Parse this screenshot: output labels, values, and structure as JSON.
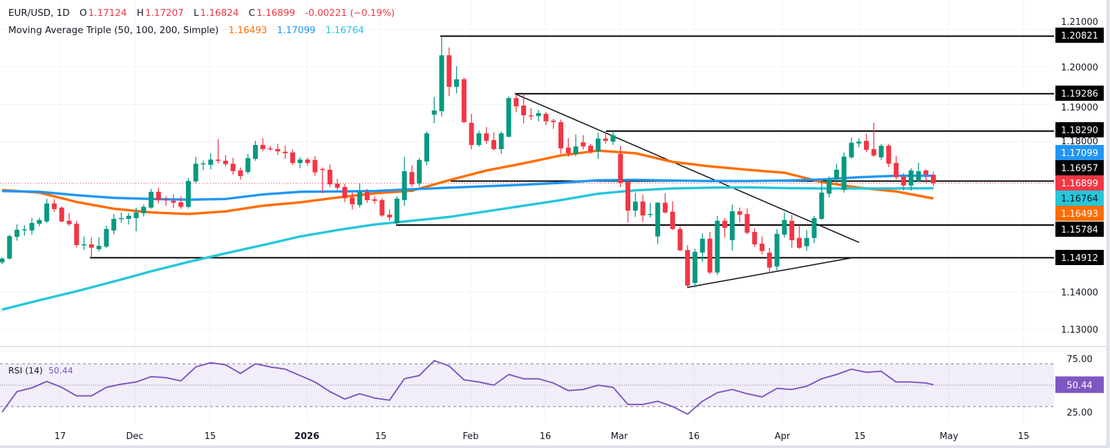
{
  "header": {
    "symbol": "EUR/USD, 1D",
    "open_label": "O",
    "open": "1.17124",
    "high_label": "H",
    "high": "1.17207",
    "low_label": "L",
    "low": "1.16824",
    "close_label": "C",
    "close": "1.16899",
    "change": "-0.00221 (−0.19%)",
    "indicator": "Moving Average Triple (50, 100, 200, Simple)",
    "ma50": "1.16493",
    "ma100": "1.17099",
    "ma200": "1.16764"
  },
  "rsi_legend": {
    "name": "RSI (14)",
    "value": "50.44"
  },
  "colors": {
    "up": "#089981",
    "down": "#f23645",
    "ma50": "#ff6d00",
    "ma100": "#2196f3",
    "ma200": "#26c6da",
    "rsi": "#7e57c2",
    "level_line": "#000000",
    "last_price": "#f23645"
  },
  "chart_data": [
    {
      "type": "candlestick",
      "title": "EUR/USD, 1D",
      "x_ticks": [
        "17",
        "Dec",
        "15",
        "2026",
        "15",
        "Feb",
        "16",
        "Mar",
        "16",
        "Apr",
        "15",
        "May",
        "15"
      ],
      "y_ticks": [
        "1.21000",
        "1.20000",
        "1.19000",
        "1.18000",
        "1.14000",
        "1.13000"
      ],
      "ylim": [
        1.1282,
        1.2102
      ],
      "grid": true,
      "ohlc": [
        [
          1.1479,
          1.1493,
          1.1474,
          1.1489
        ],
        [
          1.1489,
          1.1553,
          1.1486,
          1.1549
        ],
        [
          1.1547,
          1.158,
          1.1537,
          1.1566
        ],
        [
          1.1565,
          1.1578,
          1.155,
          1.1567
        ],
        [
          1.1564,
          1.1597,
          1.1553,
          1.1584
        ],
        [
          1.1582,
          1.1598,
          1.1575,
          1.1592
        ],
        [
          1.1588,
          1.1648,
          1.1584,
          1.1636
        ],
        [
          1.1636,
          1.1648,
          1.1614,
          1.1621
        ],
        [
          1.1625,
          1.1628,
          1.1586,
          1.1588
        ],
        [
          1.159,
          1.161,
          1.1576,
          1.1581
        ],
        [
          1.1582,
          1.159,
          1.1519,
          1.1525
        ],
        [
          1.1526,
          1.1548,
          1.1512,
          1.1527
        ],
        [
          1.1527,
          1.1545,
          1.1491,
          1.1518
        ],
        [
          1.1514,
          1.1546,
          1.1508,
          1.1523
        ],
        [
          1.1521,
          1.1577,
          1.1517,
          1.1568
        ],
        [
          1.1564,
          1.1608,
          1.1554,
          1.1595
        ],
        [
          1.1596,
          1.1612,
          1.1585,
          1.1597
        ],
        [
          1.1595,
          1.161,
          1.158,
          1.1603
        ],
        [
          1.1597,
          1.1625,
          1.1562,
          1.1612
        ],
        [
          1.161,
          1.1633,
          1.1601,
          1.1627
        ],
        [
          1.1625,
          1.1675,
          1.1622,
          1.1667
        ],
        [
          1.1667,
          1.1678,
          1.1636,
          1.1645
        ],
        [
          1.1647,
          1.1655,
          1.163,
          1.1646
        ],
        [
          1.1643,
          1.166,
          1.1625,
          1.1638
        ],
        [
          1.1639,
          1.1655,
          1.1622,
          1.1627
        ],
        [
          1.1627,
          1.1704,
          1.1622,
          1.1696
        ],
        [
          1.1695,
          1.176,
          1.169,
          1.1742
        ],
        [
          1.1742,
          1.175,
          1.1725,
          1.1743
        ],
        [
          1.1739,
          1.177,
          1.1727,
          1.1753
        ],
        [
          1.1753,
          1.1807,
          1.1743,
          1.175
        ],
        [
          1.175,
          1.1765,
          1.1735,
          1.1741
        ],
        [
          1.1742,
          1.1758,
          1.1713,
          1.1722
        ],
        [
          1.1724,
          1.1732,
          1.17,
          1.1709
        ],
        [
          1.172,
          1.1768,
          1.1714,
          1.1757
        ],
        [
          1.1755,
          1.1803,
          1.175,
          1.1792
        ],
        [
          1.1792,
          1.181,
          1.1775,
          1.1781
        ],
        [
          1.1783,
          1.179,
          1.1777,
          1.1782
        ],
        [
          1.1781,
          1.1795,
          1.1765,
          1.1775
        ],
        [
          1.1774,
          1.179,
          1.1755,
          1.177
        ],
        [
          1.1772,
          1.178,
          1.1738,
          1.1744
        ],
        [
          1.1744,
          1.176,
          1.173,
          1.1753
        ],
        [
          1.1753,
          1.1758,
          1.1737,
          1.1744
        ],
        [
          1.1752,
          1.1762,
          1.171,
          1.1719
        ],
        [
          1.1728,
          1.1732,
          1.1663,
          1.1727
        ],
        [
          1.1726,
          1.174,
          1.168,
          1.1687
        ],
        [
          1.1689,
          1.1702,
          1.1672,
          1.1678
        ],
        [
          1.168,
          1.1688,
          1.164,
          1.165
        ],
        [
          1.1652,
          1.1665,
          1.162,
          1.1634
        ],
        [
          1.1632,
          1.169,
          1.1625,
          1.1667
        ],
        [
          1.1667,
          1.1675,
          1.1638,
          1.1645
        ],
        [
          1.1647,
          1.1655,
          1.1635,
          1.1643
        ],
        [
          1.1645,
          1.165,
          1.16,
          1.1604
        ],
        [
          1.1606,
          1.162,
          1.159,
          1.1599
        ],
        [
          1.1583,
          1.1655,
          1.15784,
          1.1649
        ],
        [
          1.1645,
          1.176,
          1.163,
          1.1722
        ],
        [
          1.172,
          1.1738,
          1.168,
          1.1687
        ],
        [
          1.1689,
          1.1757,
          1.1682,
          1.1752
        ],
        [
          1.1748,
          1.1828,
          1.1738,
          1.1823
        ],
        [
          1.1873,
          1.192,
          1.185,
          1.1884
        ],
        [
          1.1882,
          1.20821,
          1.1868,
          1.2031
        ],
        [
          1.2031,
          1.2052,
          1.1922,
          1.1947
        ],
        [
          1.1947,
          1.2002,
          1.193,
          1.1967
        ],
        [
          1.1967,
          1.1972,
          1.185,
          1.1853
        ],
        [
          1.1851,
          1.1875,
          1.178,
          1.1792
        ],
        [
          1.1792,
          1.183,
          1.1787,
          1.1823
        ],
        [
          1.1823,
          1.184,
          1.1795,
          1.1803
        ],
        [
          1.1805,
          1.1826,
          1.1777,
          1.1781
        ],
        [
          1.1781,
          1.1828,
          1.1768,
          1.1823
        ],
        [
          1.1814,
          1.1922,
          1.1812,
          1.1917
        ],
        [
          1.1917,
          1.19286,
          1.188,
          1.1895
        ],
        [
          1.1897,
          1.19286,
          1.185,
          1.1871
        ],
        [
          1.1871,
          1.189,
          1.1858,
          1.187
        ],
        [
          1.1869,
          1.1885,
          1.1855,
          1.1877
        ],
        [
          1.1875,
          1.188,
          1.1845,
          1.1855
        ],
        [
          1.1857,
          1.1862,
          1.1835,
          1.1853
        ],
        [
          1.1853,
          1.186,
          1.1768,
          1.1783
        ],
        [
          1.1785,
          1.181,
          1.176,
          1.177
        ],
        [
          1.1768,
          1.182,
          1.1762,
          1.1788
        ],
        [
          1.1799,
          1.1818,
          1.178,
          1.1788
        ],
        [
          1.179,
          1.1795,
          1.1768,
          1.1775
        ],
        [
          1.1775,
          1.1825,
          1.1755,
          1.1809
        ],
        [
          1.1809,
          1.1829,
          1.1795,
          1.1803
        ],
        [
          1.1801,
          1.1829,
          1.1792,
          1.1818
        ],
        [
          1.1768,
          1.179,
          1.168,
          1.1691
        ],
        [
          1.1693,
          1.17,
          1.1585,
          1.1617
        ],
        [
          1.1617,
          1.1664,
          1.16,
          1.1641
        ],
        [
          1.1641,
          1.166,
          1.1587,
          1.1604
        ],
        [
          1.1608,
          1.1638,
          1.1598,
          1.1608
        ],
        [
          1.1548,
          1.164,
          1.1528,
          1.1638
        ],
        [
          1.1638,
          1.1663,
          1.1609,
          1.1612
        ],
        [
          1.1614,
          1.1642,
          1.1565,
          1.1568
        ],
        [
          1.1568,
          1.1575,
          1.1509,
          1.1511
        ],
        [
          1.1512,
          1.1525,
          1.141,
          1.1417
        ],
        [
          1.1424,
          1.1515,
          1.1412,
          1.1507
        ],
        [
          1.1505,
          1.1556,
          1.148,
          1.1542
        ],
        [
          1.1542,
          1.156,
          1.1447,
          1.1452
        ],
        [
          1.1452,
          1.1603,
          1.1445,
          1.159
        ],
        [
          1.159,
          1.1597,
          1.1545,
          1.1571
        ],
        [
          1.1538,
          1.1633,
          1.151,
          1.1615
        ],
        [
          1.1615,
          1.1625,
          1.1585,
          1.1606
        ],
        [
          1.1608,
          1.1623,
          1.1553,
          1.1558
        ],
        [
          1.156,
          1.157,
          1.152,
          1.1527
        ],
        [
          1.1529,
          1.1548,
          1.15,
          1.1509
        ],
        [
          1.1505,
          1.1518,
          1.145,
          1.1465
        ],
        [
          1.1468,
          1.1568,
          1.1458,
          1.1555
        ],
        [
          1.1553,
          1.1612,
          1.1545,
          1.1592
        ],
        [
          1.159,
          1.1605,
          1.1518,
          1.1538
        ],
        [
          1.1544,
          1.1578,
          1.1515,
          1.1518
        ],
        [
          1.1522,
          1.1565,
          1.151,
          1.1544
        ],
        [
          1.1544,
          1.1603,
          1.153,
          1.1597
        ],
        [
          1.1595,
          1.1697,
          1.1592,
          1.1665
        ],
        [
          1.1662,
          1.1708,
          1.1652,
          1.17
        ],
        [
          1.17,
          1.1742,
          1.169,
          1.1726
        ],
        [
          1.1672,
          1.1772,
          1.1665,
          1.1761
        ],
        [
          1.1759,
          1.1812,
          1.1755,
          1.1798
        ],
        [
          1.1796,
          1.181,
          1.1786,
          1.1801
        ],
        [
          1.1803,
          1.1822,
          1.1773,
          1.1779
        ],
        [
          1.1781,
          1.1851,
          1.176,
          1.1764
        ],
        [
          1.1759,
          1.1795,
          1.1752,
          1.179
        ],
        [
          1.179,
          1.1795,
          1.1733,
          1.1742
        ],
        [
          1.1744,
          1.1763,
          1.17,
          1.1706
        ],
        [
          1.1708,
          1.1717,
          1.1671,
          1.1684
        ],
        [
          1.1684,
          1.173,
          1.167,
          1.1724
        ],
        [
          1.1696,
          1.1745,
          1.1693,
          1.1722
        ],
        [
          1.1724,
          1.1727,
          1.169,
          1.1713
        ],
        [
          1.17124,
          1.17207,
          1.16824,
          1.16899
        ]
      ],
      "moving_averages": [
        {
          "name": "MA 50",
          "color": "#ff6d00",
          "last": "1.16493",
          "values": [
            1.1672,
            1.1665,
            1.164,
            1.1622,
            1.1612,
            1.1608,
            1.1615,
            1.163,
            1.1639,
            1.1652,
            1.1663,
            1.167,
            1.1698,
            1.1724,
            1.1743,
            1.1764,
            1.1777,
            1.177,
            1.1747,
            1.1735,
            1.1726,
            1.1718,
            1.1693,
            1.1678,
            1.1668,
            1.16493
          ]
        },
        {
          "name": "MA 100",
          "color": "#2196f3",
          "last": "1.17099",
          "values": [
            1.1669,
            1.1667,
            1.1658,
            1.1651,
            1.1648,
            1.1646,
            1.1648,
            1.166,
            1.1667,
            1.1668,
            1.1669,
            1.1674,
            1.1678,
            1.1682,
            1.1686,
            1.1691,
            1.1698,
            1.1699,
            1.1697,
            1.1696,
            1.1696,
            1.1697,
            1.17,
            1.1706,
            1.171,
            1.17099
          ]
        },
        {
          "name": "MA 200",
          "color": "#26c6da",
          "last": "1.16764",
          "values": [
            1.1353,
            1.1378,
            1.1402,
            1.1428,
            1.1455,
            1.148,
            1.1503,
            1.1525,
            1.1548,
            1.1565,
            1.158,
            1.159,
            1.16,
            1.1615,
            1.163,
            1.1645,
            1.1662,
            1.1671,
            1.1676,
            1.1678,
            1.1679,
            1.1677,
            1.1676,
            1.1676,
            1.1676,
            1.16764
          ]
        }
      ],
      "horizontal_levels": [
        {
          "price": 1.20821,
          "label": "1.20821"
        },
        {
          "price": 1.19286,
          "label": "1.19286"
        },
        {
          "price": 1.1829,
          "label": "1.18290"
        },
        {
          "price": 1.16957,
          "label": "1.16957"
        },
        {
          "price": 1.15784,
          "label": "1.15784"
        },
        {
          "price": 1.14912,
          "label": "1.14912"
        }
      ],
      "trendlines": [
        {
          "name": "descending",
          "from_price": 1.19286,
          "to_price": 1.1532
        },
        {
          "name": "ascending",
          "from_price": 1.1412,
          "to_price": 1.14912
        }
      ],
      "last_price": {
        "price": 1.16899,
        "label": "1.16899"
      },
      "price_labels": [
        {
          "price": 1.17099,
          "label": "1.17099",
          "bg": "#2196f3",
          "fg": "#ffffff"
        },
        {
          "price": 1.16764,
          "label": "1.16764",
          "bg": "#26c6da",
          "fg": "#131722"
        },
        {
          "price": 1.16493,
          "label": "1.16493",
          "bg": "#ff6d00",
          "fg": "#ffffff"
        }
      ]
    },
    {
      "type": "line",
      "title": "RSI (14)",
      "ylim": [
        22,
        80
      ],
      "y_ticks": [
        "75.00",
        "25.00"
      ],
      "bands": {
        "upper": 70,
        "middle": 50,
        "lower": 30
      },
      "last": "50.44",
      "values": [
        25,
        44,
        47.5,
        53.5,
        48,
        40,
        40,
        48,
        51,
        53,
        58,
        57,
        54,
        67,
        71,
        69,
        61,
        70,
        67,
        65,
        59,
        53,
        44,
        37,
        42,
        38,
        36,
        56,
        59,
        73,
        68,
        55,
        53,
        50,
        60,
        56,
        56,
        52,
        45,
        46,
        50,
        48,
        32,
        32,
        35,
        30,
        23,
        35,
        43,
        46,
        42,
        39,
        47,
        46,
        49,
        56,
        60,
        65,
        62,
        63,
        53,
        53,
        52,
        50.44
      ]
    }
  ]
}
